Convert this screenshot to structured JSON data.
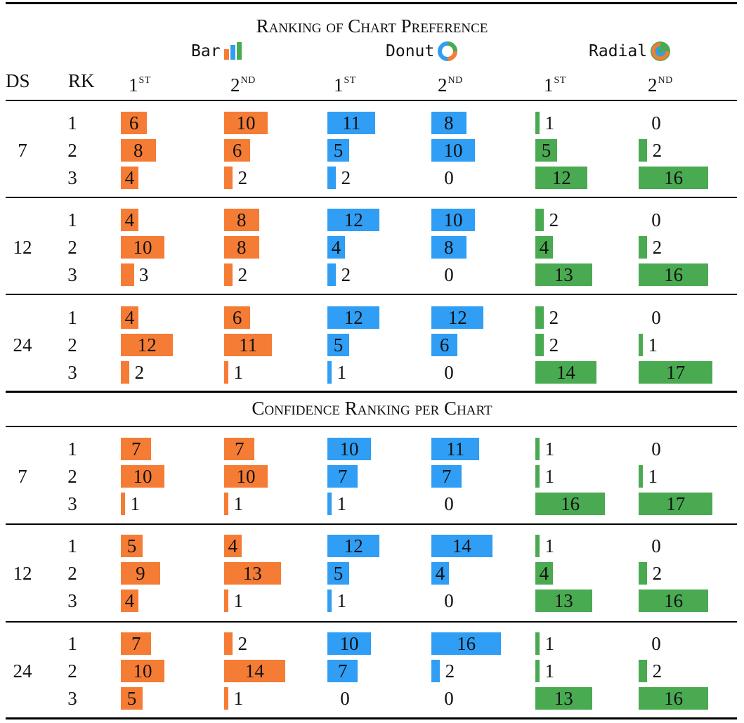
{
  "colors": {
    "bar": "#f57c35",
    "donut": "#2f9ef4",
    "radial": "#4aaa51"
  },
  "top_title": "Ranking of Chart Preference",
  "bottom_title": "Confidence Ranking per Chart",
  "charts": [
    {
      "name": "Bar",
      "icon": "bar-chart-icon"
    },
    {
      "name": "Donut",
      "icon": "donut-chart-icon"
    },
    {
      "name": "Radial",
      "icon": "radial-chart-icon"
    }
  ],
  "headers": {
    "ds": "DS",
    "rk": "RK",
    "cols": [
      {
        "n": "1",
        "suf": "ST"
      },
      {
        "n": "2",
        "suf": "ND"
      },
      {
        "n": "1",
        "suf": "ST"
      },
      {
        "n": "2",
        "suf": "ND"
      },
      {
        "n": "1",
        "suf": "ST"
      },
      {
        "n": "2",
        "suf": "ND"
      }
    ]
  },
  "sections": [
    {
      "groups": [
        {
          "ds": "7",
          "rows": [
            {
              "rk": "1",
              "values": [
                6,
                10,
                11,
                8,
                1,
                0
              ]
            },
            {
              "rk": "2",
              "values": [
                8,
                6,
                5,
                10,
                5,
                2
              ]
            },
            {
              "rk": "3",
              "values": [
                4,
                2,
                2,
                0,
                12,
                16
              ]
            }
          ]
        },
        {
          "ds": "12",
          "rows": [
            {
              "rk": "1",
              "values": [
                4,
                8,
                12,
                10,
                2,
                0
              ]
            },
            {
              "rk": "2",
              "values": [
                10,
                8,
                4,
                8,
                4,
                2
              ]
            },
            {
              "rk": "3",
              "values": [
                3,
                2,
                2,
                0,
                13,
                16
              ]
            }
          ]
        },
        {
          "ds": "24",
          "rows": [
            {
              "rk": "1",
              "values": [
                4,
                6,
                12,
                12,
                2,
                0
              ]
            },
            {
              "rk": "2",
              "values": [
                12,
                11,
                5,
                6,
                2,
                1
              ]
            },
            {
              "rk": "3",
              "values": [
                2,
                1,
                1,
                0,
                14,
                17
              ]
            }
          ]
        }
      ]
    },
    {
      "groups": [
        {
          "ds": "7",
          "rows": [
            {
              "rk": "1",
              "values": [
                7,
                7,
                10,
                11,
                1,
                0
              ]
            },
            {
              "rk": "2",
              "values": [
                10,
                10,
                7,
                7,
                1,
                1
              ]
            },
            {
              "rk": "3",
              "values": [
                1,
                1,
                1,
                0,
                16,
                17
              ]
            }
          ]
        },
        {
          "ds": "12",
          "rows": [
            {
              "rk": "1",
              "values": [
                5,
                4,
                12,
                14,
                1,
                0
              ]
            },
            {
              "rk": "2",
              "values": [
                9,
                13,
                5,
                4,
                4,
                2
              ]
            },
            {
              "rk": "3",
              "values": [
                4,
                1,
                1,
                0,
                13,
                16
              ]
            }
          ]
        },
        {
          "ds": "24",
          "rows": [
            {
              "rk": "1",
              "values": [
                7,
                2,
                10,
                16,
                1,
                0
              ]
            },
            {
              "rk": "2",
              "values": [
                10,
                14,
                7,
                2,
                1,
                2
              ]
            },
            {
              "rk": "3",
              "values": [
                5,
                1,
                0,
                0,
                13,
                16
              ]
            }
          ]
        }
      ]
    }
  ]
}
